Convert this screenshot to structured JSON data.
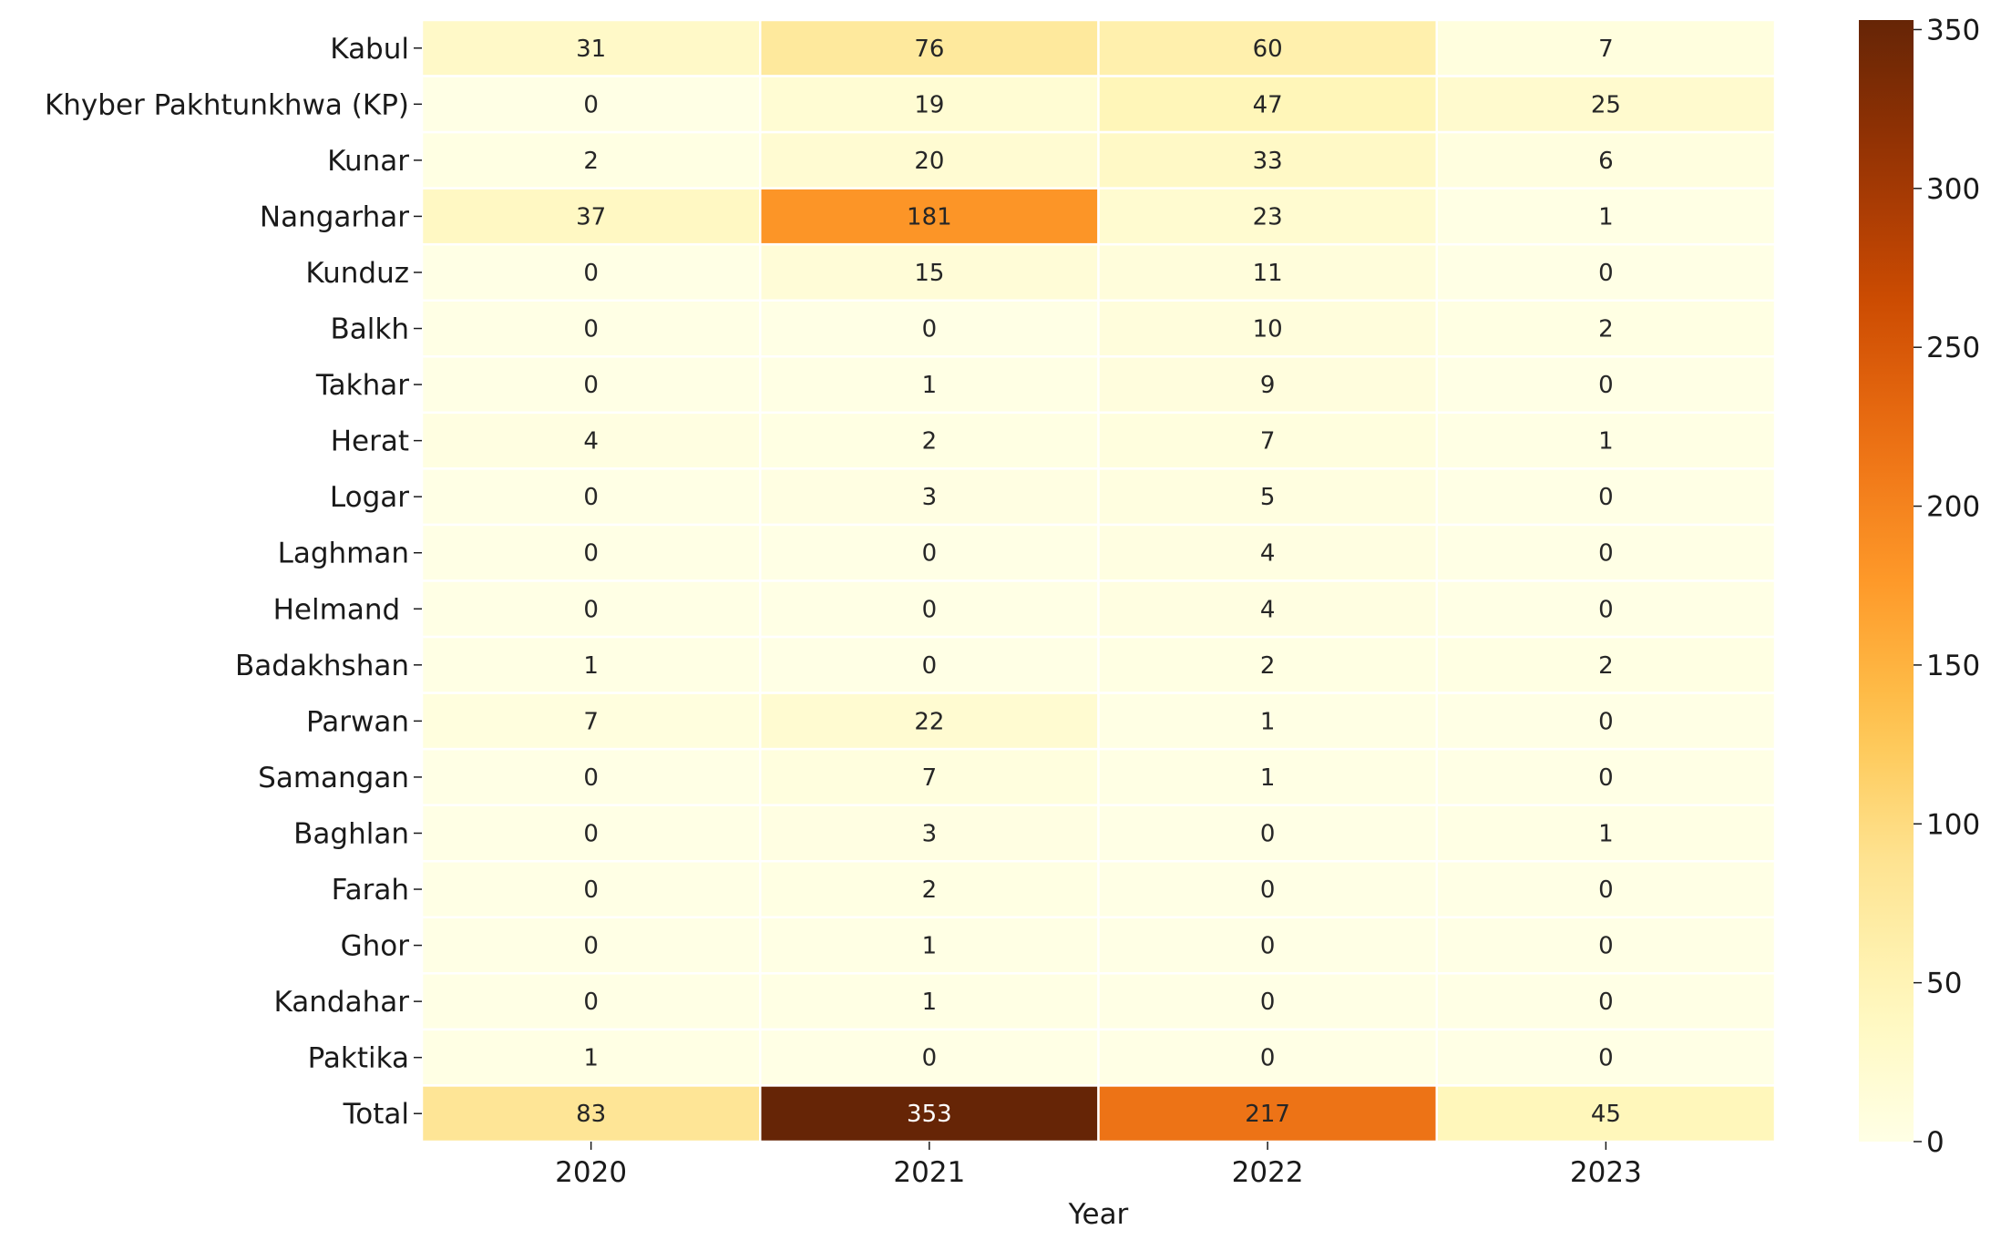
{
  "chart_data": {
    "type": "heatmap",
    "xlabel": "Year",
    "ylabel": "",
    "columns": [
      "2020",
      "2021",
      "2022",
      "2023"
    ],
    "rows": [
      "Kabul",
      "Khyber Pakhtunkhwa (KP)",
      "Kunar",
      "Nangarhar",
      "Kunduz",
      "Balkh",
      "Takhar",
      "Herat",
      "Logar",
      "Laghman",
      "Helmand ",
      "Badakhshan",
      "Parwan",
      "Samangan",
      "Baghlan",
      "Farah",
      "Ghor",
      "Kandahar",
      "Paktika",
      "Total"
    ],
    "values": [
      [
        31,
        76,
        60,
        7
      ],
      [
        0,
        19,
        47,
        25
      ],
      [
        2,
        20,
        33,
        6
      ],
      [
        37,
        181,
        23,
        1
      ],
      [
        0,
        15,
        11,
        0
      ],
      [
        0,
        0,
        10,
        2
      ],
      [
        0,
        1,
        9,
        0
      ],
      [
        4,
        2,
        7,
        1
      ],
      [
        0,
        3,
        5,
        0
      ],
      [
        0,
        0,
        4,
        0
      ],
      [
        0,
        0,
        4,
        0
      ],
      [
        1,
        0,
        2,
        2
      ],
      [
        7,
        22,
        1,
        0
      ],
      [
        0,
        7,
        1,
        0
      ],
      [
        0,
        3,
        0,
        1
      ],
      [
        0,
        2,
        0,
        0
      ],
      [
        0,
        1,
        0,
        0
      ],
      [
        0,
        1,
        0,
        0
      ],
      [
        1,
        0,
        0,
        0
      ],
      [
        83,
        353,
        217,
        45
      ]
    ],
    "colormap": "YlOrBr",
    "colorbar": {
      "min": 0,
      "max": 353,
      "ticks": [
        0,
        50,
        100,
        150,
        200,
        250,
        300,
        350
      ]
    },
    "annotated": true,
    "grid": false
  }
}
